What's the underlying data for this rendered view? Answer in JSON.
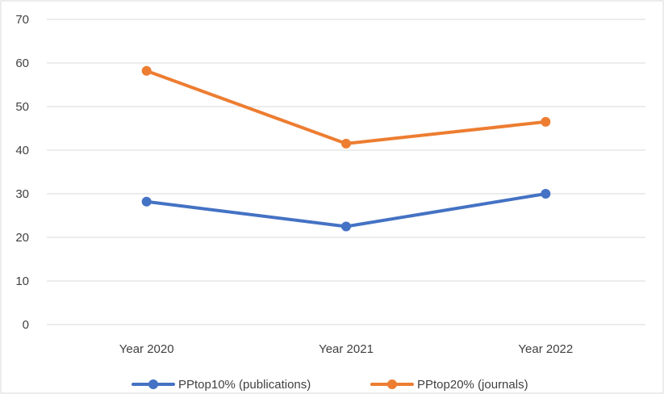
{
  "chart_data": {
    "type": "line",
    "categories": [
      "Year 2020",
      "Year 2021",
      "Year 2022"
    ],
    "series": [
      {
        "name": "PPtop10% (publications)",
        "values": [
          28.2,
          22.5,
          30.0
        ],
        "color": "#4472C4"
      },
      {
        "name": "PPtop20% (journals)",
        "values": [
          58.2,
          41.5,
          46.5
        ],
        "color": "#ED7D31"
      }
    ],
    "title": "",
    "xlabel": "",
    "ylabel": "",
    "ylim": [
      0,
      70
    ],
    "yticks": [
      "0",
      "10",
      "20",
      "30",
      "40",
      "50",
      "60",
      "70"
    ],
    "grid": true,
    "legend": "bottom",
    "colors": {
      "grid": "#D9D9D9",
      "text": "#404040",
      "border": "#D9D9D9"
    }
  }
}
